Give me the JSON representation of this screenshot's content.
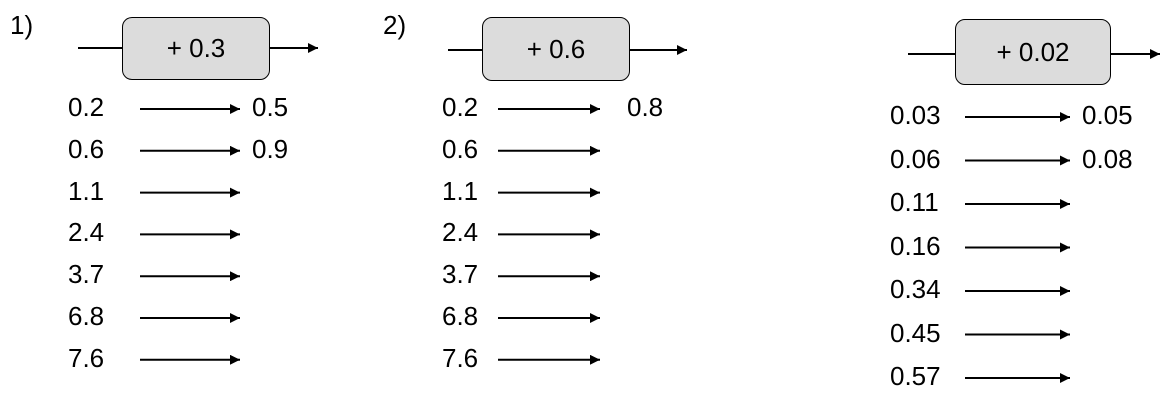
{
  "panels": [
    {
      "label": "1)",
      "operation": "+ 0.3",
      "inputs": [
        "0.2",
        "0.6",
        "1.1",
        "2.4",
        "3.7",
        "6.8",
        "7.6"
      ],
      "outputs": [
        "0.5",
        "0.9",
        "",
        "",
        "",
        "",
        ""
      ]
    },
    {
      "label": "2)",
      "operation": "+ 0.6",
      "inputs": [
        "0.2",
        "0.6",
        "1.1",
        "2.4",
        "3.7",
        "6.8",
        "7.6"
      ],
      "outputs": [
        "0.8",
        "",
        "",
        "",
        "",
        "",
        ""
      ]
    },
    {
      "label": "",
      "operation": "+ 0.02",
      "inputs": [
        "0.03",
        "0.06",
        "0.11",
        "0.16",
        "0.34",
        "0.45",
        "0.57"
      ],
      "outputs": [
        "0.05",
        "0.08",
        "",
        "",
        "",
        "",
        ""
      ]
    }
  ]
}
